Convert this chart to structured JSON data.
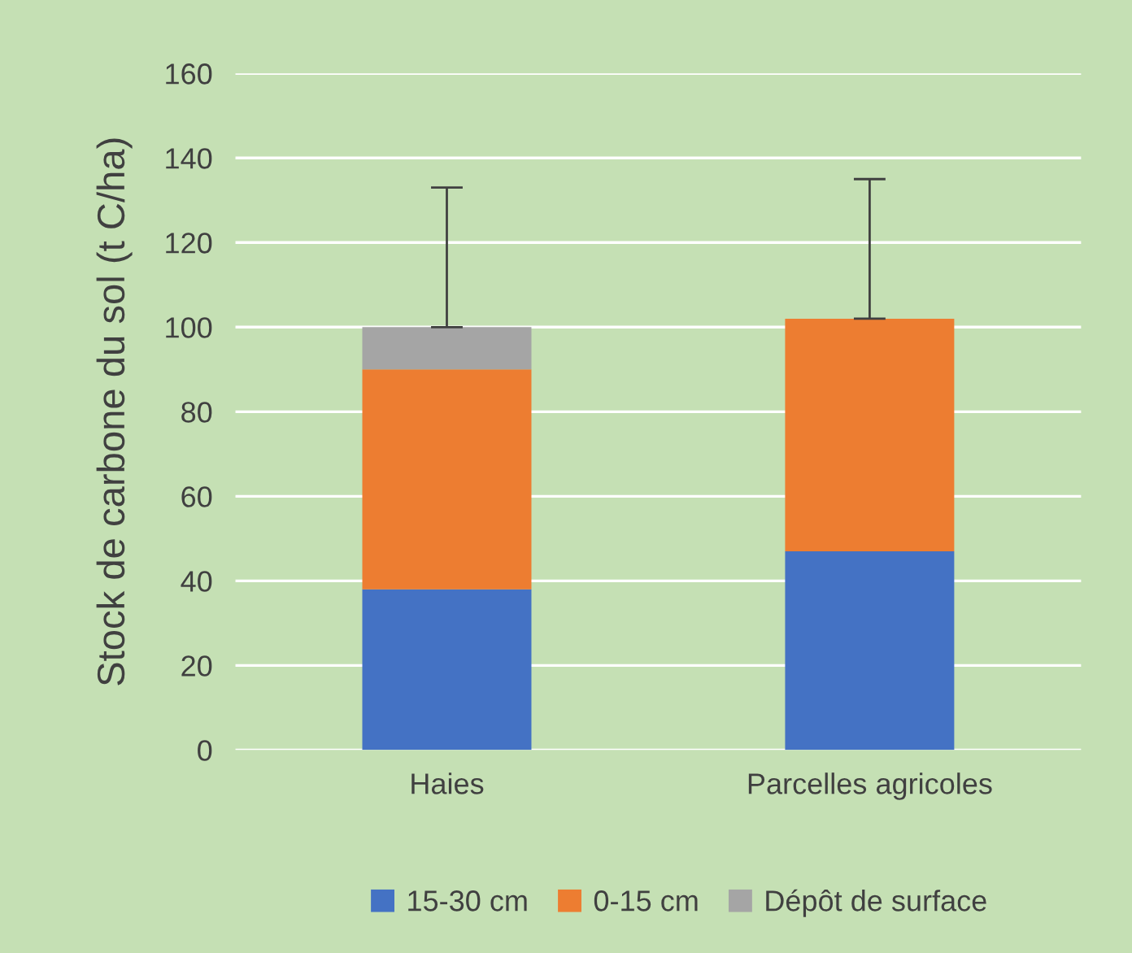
{
  "chart_data": {
    "type": "bar",
    "stacked": true,
    "ylabel": "Stock de carbone du sol (t C/ha)",
    "categories": [
      "Haies",
      "Parcelles agricoles"
    ],
    "series": [
      {
        "name": "15-30 cm",
        "color": "#4472c4",
        "values": [
          38,
          47
        ]
      },
      {
        "name": "0-15 cm",
        "color": "#ed7d31",
        "values": [
          52,
          55
        ],
        "errors": [
          null,
          [
            102,
            135
          ]
        ]
      },
      {
        "name": "Dépôt de surface",
        "color": "#a5a5a5",
        "values": [
          10,
          null
        ],
        "errors": [
          [
            100,
            133
          ],
          null
        ]
      }
    ],
    "ylim": [
      0,
      160
    ],
    "yticks": [
      0,
      20,
      40,
      60,
      80,
      100,
      120,
      140,
      160
    ],
    "grid": "y",
    "legend": "bottom"
  }
}
